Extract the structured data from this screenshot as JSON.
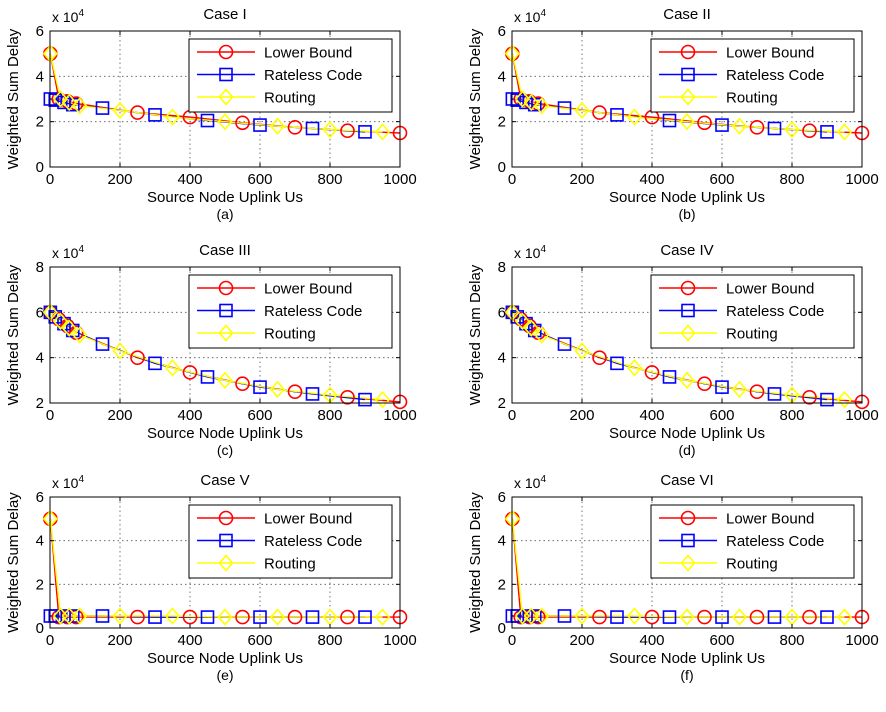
{
  "figure": {
    "legend_entries": [
      "Lower Bound",
      "Rateless Code",
      "Routing"
    ],
    "series_colors": {
      "Lower Bound": "#ff0000",
      "Rateless Code": "#0000ff",
      "Routing": "#ffff00"
    },
    "series_markers": {
      "Lower Bound": "circle",
      "Rateless Code": "square",
      "Routing": "diamond"
    }
  },
  "chart_data": [
    {
      "type": "line",
      "title": "Case I",
      "caption": "(a)",
      "xlabel": "Source Node Uplink Us",
      "ylabel": "Weighted Sum Delay",
      "y_multiplier": "x 10^4",
      "xlim": [
        0,
        1000
      ],
      "ylim": [
        0,
        6
      ],
      "xticks": [
        0,
        200,
        400,
        600,
        800,
        1000
      ],
      "yticks": [
        0,
        2,
        4,
        6
      ],
      "grid": true,
      "legend_position": "top-right",
      "series": [
        {
          "name": "Lower Bound",
          "x": [
            1,
            25,
            50,
            75,
            250,
            400,
            550,
            700,
            850,
            1000
          ],
          "y": [
            5.0,
            3.0,
            2.9,
            2.8,
            2.4,
            2.2,
            1.95,
            1.75,
            1.6,
            1.5
          ]
        },
        {
          "name": "Rateless Code",
          "x": [
            1,
            15,
            40,
            65,
            150,
            300,
            450,
            600,
            750,
            900
          ],
          "y": [
            3.0,
            2.95,
            2.85,
            2.75,
            2.6,
            2.3,
            2.05,
            1.85,
            1.7,
            1.55
          ]
        },
        {
          "name": "Routing",
          "x": [
            1,
            30,
            55,
            85,
            200,
            350,
            500,
            650,
            800,
            950
          ],
          "y": [
            5.0,
            3.0,
            2.85,
            2.7,
            2.5,
            2.2,
            2.0,
            1.8,
            1.65,
            1.55
          ]
        }
      ]
    },
    {
      "type": "line",
      "title": "Case II",
      "caption": "(b)",
      "xlabel": "Source Node Uplink Us",
      "ylabel": "Weighted Sum Delay",
      "y_multiplier": "x 10^4",
      "xlim": [
        0,
        1000
      ],
      "ylim": [
        0,
        6
      ],
      "xticks": [
        0,
        200,
        400,
        600,
        800,
        1000
      ],
      "yticks": [
        0,
        2,
        4,
        6
      ],
      "grid": true,
      "legend_position": "top-right",
      "series": [
        {
          "name": "Lower Bound",
          "x": [
            1,
            25,
            50,
            75,
            250,
            400,
            550,
            700,
            850,
            1000
          ],
          "y": [
            5.0,
            3.0,
            2.9,
            2.8,
            2.4,
            2.2,
            1.95,
            1.75,
            1.6,
            1.5
          ]
        },
        {
          "name": "Rateless Code",
          "x": [
            1,
            15,
            40,
            65,
            150,
            300,
            450,
            600,
            750,
            900
          ],
          "y": [
            3.0,
            2.95,
            2.85,
            2.75,
            2.6,
            2.3,
            2.05,
            1.85,
            1.7,
            1.55
          ]
        },
        {
          "name": "Routing",
          "x": [
            1,
            30,
            55,
            85,
            200,
            350,
            500,
            650,
            800,
            950
          ],
          "y": [
            5.0,
            3.0,
            2.85,
            2.7,
            2.5,
            2.2,
            2.0,
            1.8,
            1.65,
            1.55
          ]
        }
      ]
    },
    {
      "type": "line",
      "title": "Case III",
      "caption": "(c)",
      "xlabel": "Source Node Uplink Us",
      "ylabel": "Weighted Sum Delay",
      "y_multiplier": "x 10^4",
      "xlim": [
        0,
        1000
      ],
      "ylim": [
        2,
        8
      ],
      "xticks": [
        0,
        200,
        400,
        600,
        800,
        1000
      ],
      "yticks": [
        2,
        4,
        6,
        8
      ],
      "grid": true,
      "legend_position": "top-right",
      "series": [
        {
          "name": "Lower Bound",
          "x": [
            1,
            25,
            50,
            75,
            250,
            400,
            550,
            700,
            850,
            1000
          ],
          "y": [
            6.0,
            5.7,
            5.4,
            5.1,
            4.0,
            3.35,
            2.85,
            2.5,
            2.25,
            2.05
          ]
        },
        {
          "name": "Rateless Code",
          "x": [
            1,
            15,
            40,
            65,
            150,
            300,
            450,
            600,
            750,
            900
          ],
          "y": [
            6.0,
            5.8,
            5.5,
            5.2,
            4.6,
            3.75,
            3.15,
            2.7,
            2.4,
            2.15
          ]
        },
        {
          "name": "Routing",
          "x": [
            1,
            30,
            55,
            85,
            200,
            350,
            500,
            650,
            800,
            950
          ],
          "y": [
            6.0,
            5.6,
            5.3,
            5.0,
            4.3,
            3.55,
            3.0,
            2.6,
            2.35,
            2.15
          ]
        }
      ]
    },
    {
      "type": "line",
      "title": "Case IV",
      "caption": "(d)",
      "xlabel": "Source Node Uplink Us",
      "ylabel": "Weighted Sum Delay",
      "y_multiplier": "x 10^4",
      "xlim": [
        0,
        1000
      ],
      "ylim": [
        2,
        8
      ],
      "xticks": [
        0,
        200,
        400,
        600,
        800,
        1000
      ],
      "yticks": [
        2,
        4,
        6,
        8
      ],
      "grid": true,
      "legend_position": "top-right",
      "series": [
        {
          "name": "Lower Bound",
          "x": [
            1,
            25,
            50,
            75,
            250,
            400,
            550,
            700,
            850,
            1000
          ],
          "y": [
            6.0,
            5.7,
            5.4,
            5.1,
            4.0,
            3.35,
            2.85,
            2.5,
            2.25,
            2.05
          ]
        },
        {
          "name": "Rateless Code",
          "x": [
            1,
            15,
            40,
            65,
            150,
            300,
            450,
            600,
            750,
            900
          ],
          "y": [
            6.0,
            5.8,
            5.5,
            5.2,
            4.6,
            3.75,
            3.15,
            2.7,
            2.4,
            2.15
          ]
        },
        {
          "name": "Routing",
          "x": [
            1,
            30,
            55,
            85,
            200,
            350,
            500,
            650,
            800,
            950
          ],
          "y": [
            6.0,
            5.6,
            5.3,
            5.0,
            4.3,
            3.55,
            3.0,
            2.6,
            2.35,
            2.15
          ]
        }
      ]
    },
    {
      "type": "line",
      "title": "Case V",
      "caption": "(e)",
      "xlabel": "Source Node Uplink Us",
      "ylabel": "Weighted Sum Delay",
      "y_multiplier": "x 10^4",
      "xlim": [
        0,
        1000
      ],
      "ylim": [
        0,
        6
      ],
      "xticks": [
        0,
        200,
        400,
        600,
        800,
        1000
      ],
      "yticks": [
        0,
        2,
        4,
        6
      ],
      "grid": true,
      "legend_position": "top-right",
      "series": [
        {
          "name": "Lower Bound",
          "x": [
            1,
            25,
            50,
            75,
            250,
            400,
            550,
            700,
            850,
            1000
          ],
          "y": [
            5.0,
            0.5,
            0.5,
            0.5,
            0.5,
            0.5,
            0.5,
            0.5,
            0.5,
            0.5
          ]
        },
        {
          "name": "Rateless Code",
          "x": [
            1,
            15,
            40,
            65,
            150,
            300,
            450,
            600,
            750,
            900
          ],
          "y": [
            0.55,
            0.55,
            0.55,
            0.55,
            0.55,
            0.5,
            0.5,
            0.5,
            0.5,
            0.5
          ]
        },
        {
          "name": "Routing",
          "x": [
            1,
            30,
            55,
            85,
            200,
            350,
            500,
            650,
            800,
            950
          ],
          "y": [
            5.0,
            0.55,
            0.55,
            0.55,
            0.55,
            0.55,
            0.5,
            0.5,
            0.5,
            0.5
          ]
        }
      ]
    },
    {
      "type": "line",
      "title": "Case VI",
      "caption": "(f)",
      "xlabel": "Source Node Uplink Us",
      "ylabel": "Weighted Sum Delay",
      "y_multiplier": "x 10^4",
      "xlim": [
        0,
        1000
      ],
      "ylim": [
        0,
        6
      ],
      "xticks": [
        0,
        200,
        400,
        600,
        800,
        1000
      ],
      "yticks": [
        0,
        2,
        4,
        6
      ],
      "grid": true,
      "legend_position": "top-right",
      "series": [
        {
          "name": "Lower Bound",
          "x": [
            1,
            25,
            50,
            75,
            250,
            400,
            550,
            700,
            850,
            1000
          ],
          "y": [
            5.0,
            0.5,
            0.5,
            0.5,
            0.5,
            0.5,
            0.5,
            0.5,
            0.5,
            0.5
          ]
        },
        {
          "name": "Rateless Code",
          "x": [
            1,
            15,
            40,
            65,
            150,
            300,
            450,
            600,
            750,
            900
          ],
          "y": [
            0.55,
            0.55,
            0.55,
            0.55,
            0.55,
            0.5,
            0.5,
            0.5,
            0.5,
            0.5
          ]
        },
        {
          "name": "Routing",
          "x": [
            1,
            30,
            55,
            85,
            200,
            350,
            500,
            650,
            800,
            950
          ],
          "y": [
            5.0,
            0.55,
            0.55,
            0.55,
            0.55,
            0.55,
            0.5,
            0.5,
            0.5,
            0.5
          ]
        }
      ]
    }
  ]
}
